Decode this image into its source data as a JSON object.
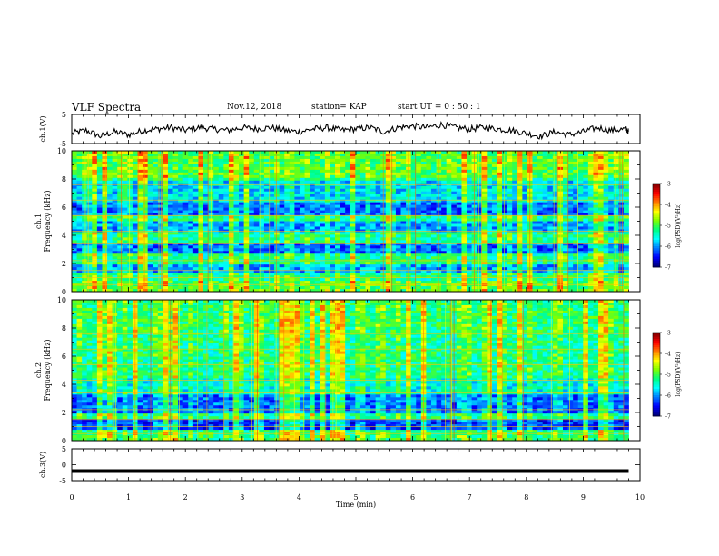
{
  "header": {
    "title": "VLF Spectra",
    "date": "Nov.12, 2018",
    "station": "station= KAP",
    "start": "start  UT =   0 : 50 : 1"
  },
  "chart_data": [
    {
      "type": "line",
      "panel": "ch1-waveform",
      "ylabel": "ch.1(V)",
      "ylim": [
        -5,
        5
      ],
      "yticks": [
        "5",
        "-5"
      ],
      "xlim": [
        0,
        10
      ],
      "x": [
        0,
        0.25,
        0.5,
        0.75,
        1.0,
        1.25,
        1.5,
        1.75,
        2.0,
        2.25,
        2.5,
        2.75,
        3.0,
        3.25,
        3.5,
        3.75,
        4.0,
        4.25,
        4.5,
        4.75,
        5.0,
        5.25,
        5.5,
        5.75,
        6.0,
        6.25,
        6.5,
        6.75,
        7.0,
        7.25,
        7.5,
        7.75,
        8.0,
        8.25,
        8.5,
        8.75,
        9.0,
        9.25,
        9.5,
        9.75,
        9.8
      ],
      "values": [
        -1.5,
        -0.5,
        -2.5,
        -1.0,
        -2.0,
        -0.5,
        0.0,
        0.5,
        -0.5,
        0.5,
        0.0,
        -0.5,
        0.5,
        0.0,
        0.5,
        -0.5,
        -1.0,
        0.0,
        0.5,
        -0.5,
        0.0,
        0.5,
        -1.0,
        0.5,
        1.0,
        0.5,
        1.5,
        0.5,
        0.0,
        0.5,
        0.0,
        -0.5,
        -1.5,
        -2.5,
        -1.0,
        -2.0,
        -1.0,
        0.5,
        -0.5,
        0.0,
        -1.0
      ]
    },
    {
      "type": "heatmap",
      "panel": "ch1-spectrogram",
      "ylabel": "Frequency (kHz)",
      "channel_label": "ch.1",
      "ylim": [
        0,
        10
      ],
      "yticks": [
        "0",
        "2",
        "4",
        "6",
        "8",
        "10"
      ],
      "xlim": [
        0,
        10
      ],
      "colorbar": {
        "label": "log(PSD)(V²/Hz)",
        "ticks": [
          "-3",
          "-4",
          "-5",
          "-6",
          "-7"
        ],
        "range": [
          -7,
          -3
        ]
      }
    },
    {
      "type": "heatmap",
      "panel": "ch2-spectrogram",
      "ylabel": "Frequency (kHz)",
      "channel_label": "ch.2",
      "ylim": [
        0,
        10
      ],
      "yticks": [
        "0",
        "2",
        "4",
        "6",
        "8",
        "10"
      ],
      "xlim": [
        0,
        10
      ],
      "colorbar": {
        "label": "log(PSD)(V²/Hz)",
        "ticks": [
          "-3",
          "-4",
          "-5",
          "-6",
          "-7"
        ],
        "range": [
          -7,
          -3
        ]
      }
    },
    {
      "type": "line",
      "panel": "ch3-waveform",
      "ylabel": "ch.3(V)",
      "ylim": [
        -5,
        5
      ],
      "yticks": [
        "5",
        "0",
        "-5"
      ],
      "xlim": [
        0,
        10
      ],
      "x": [
        0,
        9.8
      ],
      "values": [
        -2,
        -2
      ]
    }
  ],
  "x_axis": {
    "label": "Time  (min)",
    "ticks": [
      "0",
      "1",
      "2",
      "3",
      "4",
      "5",
      "6",
      "7",
      "8",
      "9",
      "10"
    ]
  },
  "colors": {
    "colormap": [
      "#00007f",
      "#0000ff",
      "#007fff",
      "#00ffff",
      "#00ff7f",
      "#7fff00",
      "#ffff00",
      "#ff7f00",
      "#ff0000",
      "#7f0000"
    ]
  }
}
